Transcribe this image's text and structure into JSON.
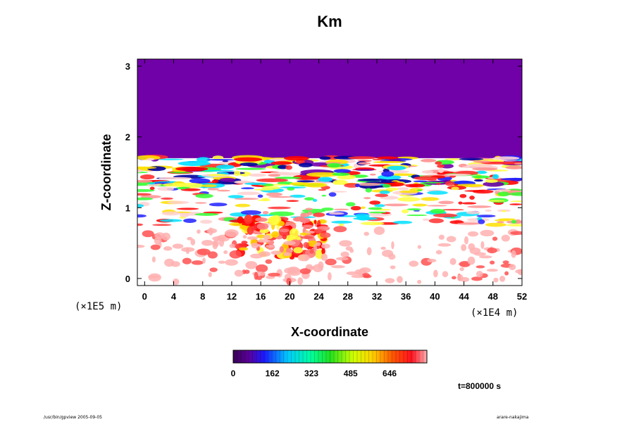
{
  "chart_data": {
    "type": "heatmap",
    "title": "Km",
    "xlabel": "X-coordinate",
    "ylabel": "Z-coordinate",
    "x_ticks": [
      "0",
      "4",
      "8",
      "12",
      "16",
      "20",
      "24",
      "28",
      "32",
      "36",
      "40",
      "44",
      "48",
      "52"
    ],
    "y_ticks": [
      "0",
      "1",
      "2",
      "3"
    ],
    "xlim": [
      -1,
      52
    ],
    "ylim": [
      -0.1,
      3.1
    ],
    "x_scale_label": "(×1E4 m)",
    "y_scale_label": "(×1E5 m)",
    "colorbar": {
      "min": 0,
      "max": 800,
      "ticks": [
        "0",
        "162",
        "323",
        "485",
        "646"
      ],
      "tick_values": [
        0,
        162,
        323,
        485,
        646
      ]
    },
    "annotation": "t=800000 s",
    "upper_region": {
      "z_from": 1.7,
      "z_to": 3.1,
      "value": 0
    },
    "bands": [
      {
        "z_from": 0.95,
        "z_to": 1.7,
        "description": "alternating high/low layers"
      },
      {
        "z_from": 0.2,
        "z_to": 0.9,
        "description": "plume near x=16-22"
      }
    ]
  },
  "footer": {
    "left": "/usr/bin/gpview 2005-09-05",
    "right": "arare-nakajima"
  }
}
